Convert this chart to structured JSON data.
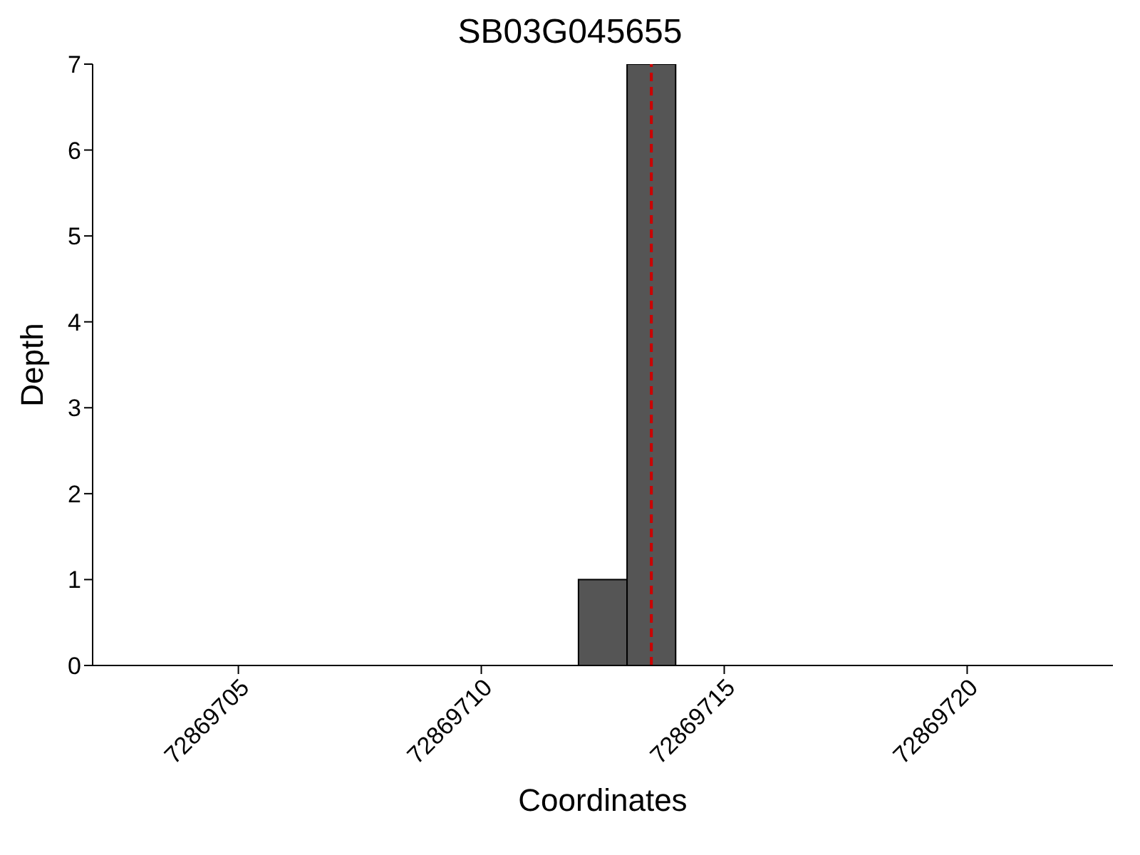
{
  "chart_data": {
    "type": "histogram",
    "title": "SB03G045655",
    "xlabel": "Coordinates",
    "ylabel": "Depth",
    "bins": [
      72869712,
      72869713,
      72869714
    ],
    "values": [
      1,
      7
    ],
    "color": "#555555",
    "xlim": [
      72869702,
      72869723
    ],
    "xticks": [
      72869705,
      72869710,
      72869715,
      72869720
    ],
    "ylim": [
      0,
      7
    ],
    "yticks": [
      0,
      1,
      2,
      3,
      4,
      5,
      6,
      7
    ],
    "ref_lines": [
      {
        "axis": "x",
        "value": 72869713.5,
        "color": "#cc0000",
        "line_style": "dashed"
      }
    ]
  }
}
